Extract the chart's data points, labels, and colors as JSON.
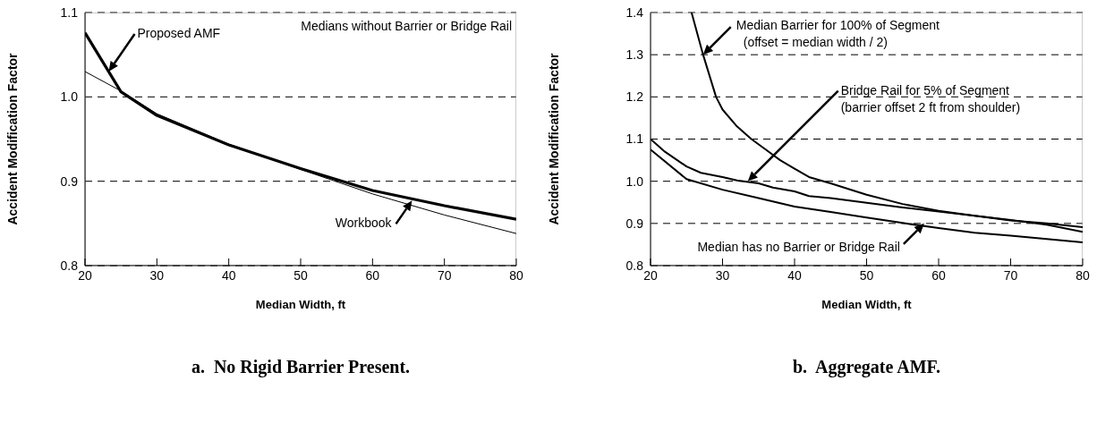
{
  "chart_data": [
    {
      "type": "line",
      "title": "a.  No Rigid Barrier Present.",
      "xlabel": "Median Width, ft",
      "ylabel": "Accident Modification Factor",
      "xlim": [
        20,
        80
      ],
      "xticks": [
        20,
        30,
        40,
        50,
        60,
        70,
        80
      ],
      "ylim": [
        0.8,
        1.1
      ],
      "yticks": [
        0.8,
        0.9,
        {
          "value": 1,
          "label": "1.0"
        },
        1.1
      ],
      "grid": "y",
      "line_style": "solid",
      "marker": "none",
      "series": [
        {
          "color": "#000000",
          "x": [
            20,
            25,
            30,
            40,
            50,
            60,
            70,
            80
          ],
          "values": [
            1.076,
            1.006,
            0.978,
            0.943,
            0.915,
            0.889,
            0.871,
            0.855
          ]
        },
        {
          "color": "#000000",
          "x": [
            20,
            25,
            30,
            40,
            50,
            60,
            70,
            80
          ],
          "values": [
            1.03,
            1.007,
            0.98,
            0.944,
            0.914,
            0.885,
            0.86,
            0.838
          ]
        }
      ],
      "annotations": [
        "Proposed AMF",
        {
          "text": "Workbook",
          "x": 65.5,
          "y": 0.877
        },
        "Medians without Barrier or Bridge Rail"
      ]
    },
    {
      "type": "line",
      "title": "b.  Aggregate AMF.",
      "xlabel": "Median Width, ft",
      "ylabel": "Accident Modification Factor",
      "xlim": [
        20,
        80
      ],
      "xticks": [
        20,
        30,
        40,
        50,
        60,
        70,
        80
      ],
      "ylim": [
        0.8,
        1.4
      ],
      "yticks": [
        0.8,
        0.9,
        {
          "value": 1,
          "label": "1.0"
        },
        1.1,
        1.2,
        1.3,
        1.4
      ],
      "grid": "y",
      "line_style": "solid",
      "marker": "none",
      "series": [
        {
          "color": "#000000",
          "x": [
            25.7,
            27.3,
            29.1,
            30,
            32,
            34,
            36,
            38,
            40,
            42,
            45,
            50,
            55,
            60,
            65,
            70,
            75,
            80
          ],
          "values": [
            1.4,
            1.3,
            1.2,
            1.17,
            1.13,
            1.1,
            1.075,
            1.05,
            1.03,
            1.01,
            0.995,
            0.968,
            0.946,
            0.93,
            0.918,
            0.908,
            0.897,
            0.88
          ]
        },
        {
          "color": "#000000",
          "x": [
            20,
            22,
            25,
            27,
            30,
            32,
            35,
            37,
            40,
            42,
            45,
            50,
            55,
            60,
            65,
            70,
            75,
            80
          ],
          "values": [
            1.1,
            1.07,
            1.035,
            1.02,
            1.01,
            1.002,
            0.995,
            0.985,
            0.976,
            0.965,
            0.96,
            0.949,
            0.938,
            0.928,
            0.918,
            0.907,
            0.9,
            0.891
          ]
        },
        {
          "color": "#000000",
          "x": [
            20,
            25,
            30,
            35,
            40,
            45,
            50,
            55,
            60,
            65,
            70,
            75,
            80
          ],
          "values": [
            1.075,
            1.005,
            0.98,
            0.96,
            0.94,
            0.927,
            0.914,
            0.901,
            0.889,
            0.878,
            0.871,
            0.863,
            0.855
          ]
        }
      ],
      "annotations": [
        {
          "text": "Median Barrier for 100% of Segment\n(offset = median width / 2)",
          "x": 27.3,
          "y": 1.3
        },
        "Bridge Rail for 5% of Segment\n(barrier offset 2 ft from shoulder)",
        {
          "text": "Median has no Barrier or Bridge Rail",
          "x": 58,
          "y": 0.9
        }
      ]
    }
  ]
}
